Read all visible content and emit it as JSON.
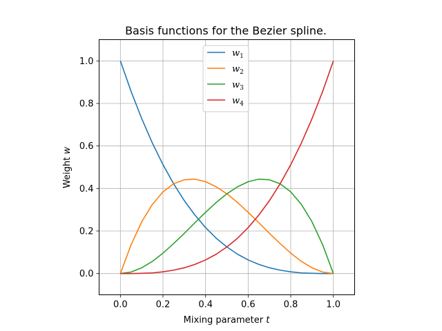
{
  "chart_data": {
    "type": "line",
    "title": "Basis functions for the Bezier spline.",
    "xlabel_prefix": "Mixing parameter ",
    "xlabel_var": "t",
    "ylabel_prefix": "Weight ",
    "ylabel_var": "w",
    "xlim": [
      -0.1,
      1.1
    ],
    "ylim": [
      -0.1,
      1.1
    ],
    "xticks": [
      0.0,
      0.2,
      0.4,
      0.6,
      0.8,
      1.0
    ],
    "yticks": [
      0.0,
      0.2,
      0.4,
      0.6,
      0.8,
      1.0
    ],
    "xtick_labels": [
      "0.0",
      "0.2",
      "0.4",
      "0.6",
      "0.8",
      "1.0"
    ],
    "ytick_labels": [
      "0.0",
      "0.2",
      "0.4",
      "0.6",
      "0.8",
      "1.0"
    ],
    "grid": true,
    "legend_position": "top-center",
    "x": [
      0.0,
      0.05,
      0.1,
      0.15,
      0.2,
      0.25,
      0.3,
      0.35,
      0.4,
      0.45,
      0.5,
      0.55,
      0.6,
      0.65,
      0.7,
      0.75,
      0.8,
      0.85,
      0.9,
      0.95,
      1.0
    ],
    "series": [
      {
        "name": "w",
        "sub": "1",
        "color": "#1f77b4",
        "values": [
          1.0,
          0.857,
          0.729,
          0.614,
          0.512,
          0.422,
          0.343,
          0.275,
          0.216,
          0.166,
          0.125,
          0.091,
          0.064,
          0.043,
          0.027,
          0.016,
          0.008,
          0.003,
          0.001,
          0.0,
          0.0
        ]
      },
      {
        "name": "w",
        "sub": "2",
        "color": "#ff7f0e",
        "values": [
          0.0,
          0.135,
          0.243,
          0.325,
          0.384,
          0.422,
          0.441,
          0.444,
          0.432,
          0.408,
          0.375,
          0.334,
          0.288,
          0.239,
          0.189,
          0.141,
          0.096,
          0.057,
          0.027,
          0.007,
          0.0
        ]
      },
      {
        "name": "w",
        "sub": "3",
        "color": "#2ca02c",
        "values": [
          0.0,
          0.007,
          0.027,
          0.057,
          0.096,
          0.141,
          0.189,
          0.239,
          0.288,
          0.334,
          0.375,
          0.408,
          0.432,
          0.444,
          0.441,
          0.422,
          0.384,
          0.325,
          0.243,
          0.135,
          0.0
        ]
      },
      {
        "name": "w",
        "sub": "4",
        "color": "#d62728",
        "values": [
          0.0,
          0.0,
          0.001,
          0.003,
          0.008,
          0.016,
          0.027,
          0.043,
          0.064,
          0.091,
          0.125,
          0.166,
          0.216,
          0.275,
          0.343,
          0.422,
          0.512,
          0.614,
          0.729,
          0.857,
          1.0
        ]
      }
    ]
  }
}
